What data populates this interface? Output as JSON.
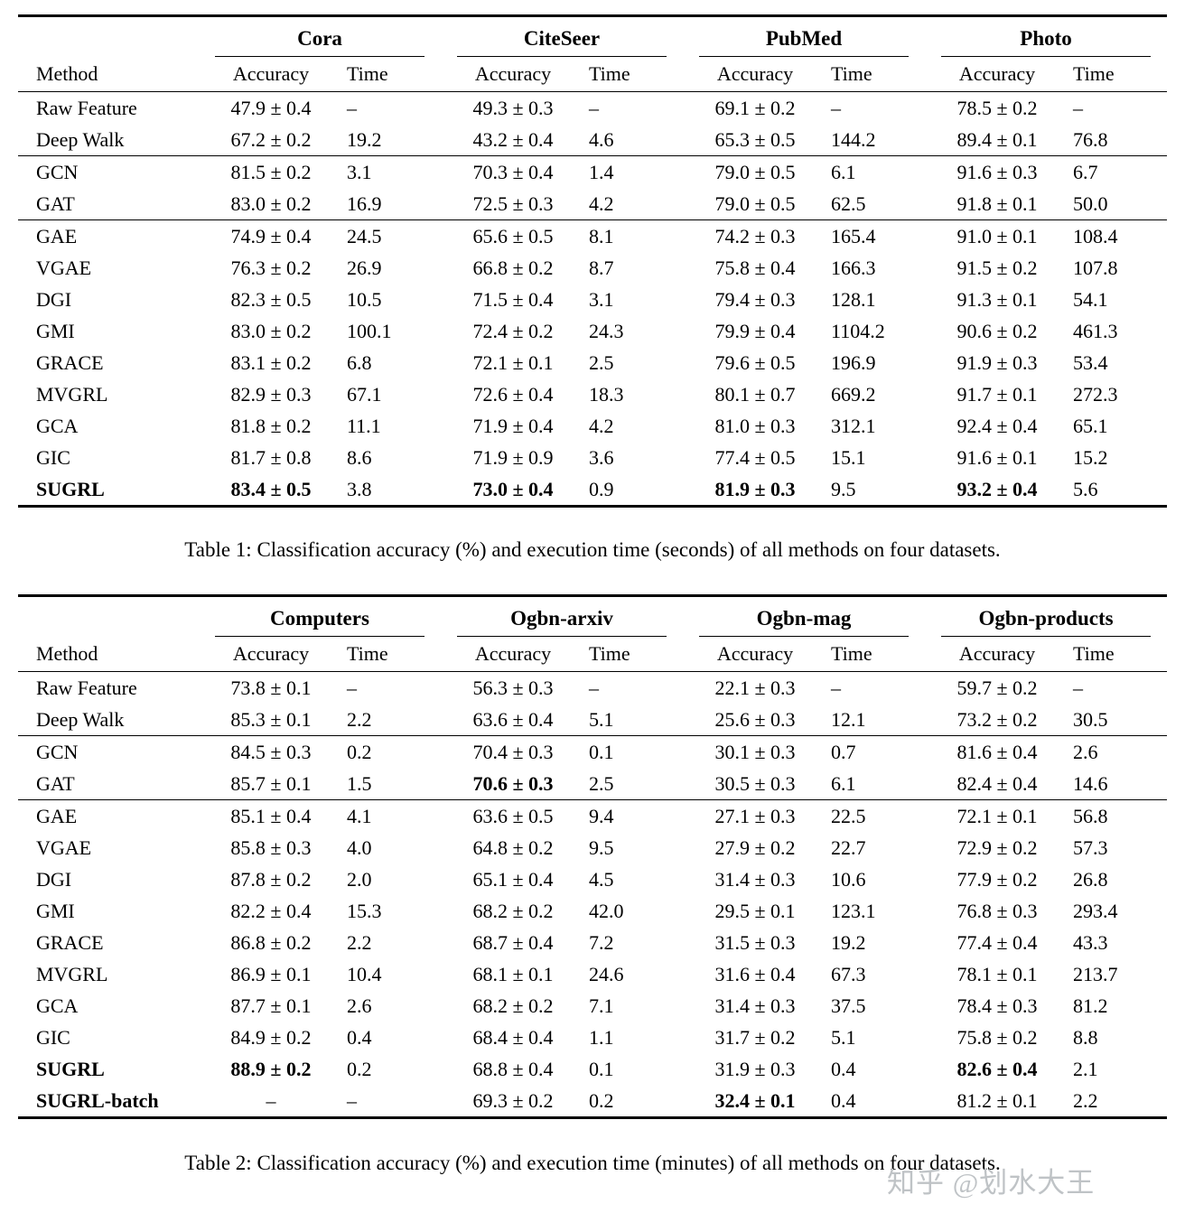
{
  "page": {
    "watermark": "知乎 @划水大王",
    "colors": {
      "background": "#ffffff",
      "text": "#000000",
      "watermark": "#bfc3c6"
    }
  },
  "tables": [
    {
      "id": "table1",
      "caption": "Table 1: Classification accuracy (%) and execution time (seconds) of all methods on four datasets.",
      "method_header": "Method",
      "sub_headers": [
        "Accuracy",
        "Time"
      ],
      "datasets": [
        "Cora",
        "CiteSeer",
        "PubMed",
        "Photo"
      ],
      "groups": [
        {
          "rows": [
            {
              "method": "Raw Feature",
              "method_bold": false,
              "bold_cols": [],
              "values": [
                "47.9 ± 0.4",
                "–",
                "49.3 ± 0.3",
                "–",
                "69.1 ± 0.2",
                "–",
                "78.5 ± 0.2",
                "–"
              ]
            },
            {
              "method": "Deep Walk",
              "method_bold": false,
              "bold_cols": [],
              "values": [
                "67.2 ± 0.2",
                "19.2",
                "43.2 ± 0.4",
                "4.6",
                "65.3 ± 0.5",
                "144.2",
                "89.4 ± 0.1",
                "76.8"
              ]
            }
          ]
        },
        {
          "rows": [
            {
              "method": "GCN",
              "method_bold": false,
              "bold_cols": [],
              "values": [
                "81.5 ± 0.2",
                "3.1",
                "70.3 ± 0.4",
                "1.4",
                "79.0 ± 0.5",
                "6.1",
                "91.6 ± 0.3",
                "6.7"
              ]
            },
            {
              "method": "GAT",
              "method_bold": false,
              "bold_cols": [],
              "values": [
                "83.0 ± 0.2",
                "16.9",
                "72.5 ± 0.3",
                "4.2",
                "79.0 ± 0.5",
                "62.5",
                "91.8 ± 0.1",
                "50.0"
              ]
            }
          ]
        },
        {
          "rows": [
            {
              "method": "GAE",
              "method_bold": false,
              "bold_cols": [],
              "values": [
                "74.9 ± 0.4",
                "24.5",
                "65.6 ± 0.5",
                "8.1",
                "74.2 ± 0.3",
                "165.4",
                "91.0 ± 0.1",
                "108.4"
              ]
            },
            {
              "method": "VGAE",
              "method_bold": false,
              "bold_cols": [],
              "values": [
                "76.3 ± 0.2",
                "26.9",
                "66.8 ± 0.2",
                "8.7",
                "75.8 ± 0.4",
                "166.3",
                "91.5 ± 0.2",
                "107.8"
              ]
            },
            {
              "method": "DGI",
              "method_bold": false,
              "bold_cols": [],
              "values": [
                "82.3 ± 0.5",
                "10.5",
                "71.5 ± 0.4",
                "3.1",
                "79.4 ± 0.3",
                "128.1",
                "91.3 ± 0.1",
                "54.1"
              ]
            },
            {
              "method": "GMI",
              "method_bold": false,
              "bold_cols": [],
              "values": [
                "83.0 ± 0.2",
                "100.1",
                "72.4 ± 0.2",
                "24.3",
                "79.9 ± 0.4",
                "1104.2",
                "90.6 ± 0.2",
                "461.3"
              ]
            },
            {
              "method": "GRACE",
              "method_bold": false,
              "bold_cols": [],
              "values": [
                "83.1 ± 0.2",
                "6.8",
                "72.1 ± 0.1",
                "2.5",
                "79.6 ± 0.5",
                "196.9",
                "91.9 ± 0.3",
                "53.4"
              ]
            },
            {
              "method": "MVGRL",
              "method_bold": false,
              "bold_cols": [],
              "values": [
                "82.9 ± 0.3",
                "67.1",
                "72.6 ± 0.4",
                "18.3",
                "80.1 ± 0.7",
                "669.2",
                "91.7 ± 0.1",
                "272.3"
              ]
            },
            {
              "method": "GCA",
              "method_bold": false,
              "bold_cols": [],
              "values": [
                "81.8 ± 0.2",
                "11.1",
                "71.9 ± 0.4",
                "4.2",
                "81.0 ± 0.3",
                "312.1",
                "92.4 ± 0.4",
                "65.1"
              ]
            },
            {
              "method": "GIC",
              "method_bold": false,
              "bold_cols": [],
              "values": [
                "81.7 ± 0.8",
                "8.6",
                "71.9 ± 0.9",
                "3.6",
                "77.4 ± 0.5",
                "15.1",
                "91.6 ± 0.1",
                "15.2"
              ]
            },
            {
              "method": "SUGRL",
              "method_bold": true,
              "bold_cols": [
                0,
                2,
                4,
                6
              ],
              "values": [
                "83.4 ± 0.5",
                "3.8",
                "73.0 ± 0.4",
                "0.9",
                "81.9 ± 0.3",
                "9.5",
                "93.2 ± 0.4",
                "5.6"
              ]
            }
          ]
        }
      ]
    },
    {
      "id": "table2",
      "caption": "Table 2: Classification accuracy (%) and execution time (minutes) of all methods on four datasets.",
      "method_header": "Method",
      "sub_headers": [
        "Accuracy",
        "Time"
      ],
      "datasets": [
        "Computers",
        "Ogbn-arxiv",
        "Ogbn-mag",
        "Ogbn-products"
      ],
      "groups": [
        {
          "rows": [
            {
              "method": "Raw Feature",
              "method_bold": false,
              "bold_cols": [],
              "values": [
                "73.8 ± 0.1",
                "–",
                "56.3 ± 0.3",
                "–",
                "22.1 ± 0.3",
                "–",
                "59.7 ± 0.2",
                "–"
              ]
            },
            {
              "method": "Deep Walk",
              "method_bold": false,
              "bold_cols": [],
              "values": [
                "85.3 ± 0.1",
                "2.2",
                "63.6 ± 0.4",
                "5.1",
                "25.6 ± 0.3",
                "12.1",
                "73.2 ± 0.2",
                "30.5"
              ]
            }
          ]
        },
        {
          "rows": [
            {
              "method": "GCN",
              "method_bold": false,
              "bold_cols": [],
              "values": [
                "84.5 ± 0.3",
                "0.2",
                "70.4 ± 0.3",
                "0.1",
                "30.1 ± 0.3",
                "0.7",
                "81.6 ± 0.4",
                "2.6"
              ]
            },
            {
              "method": "GAT",
              "method_bold": false,
              "bold_cols": [
                2
              ],
              "values": [
                "85.7 ± 0.1",
                "1.5",
                "70.6 ± 0.3",
                "2.5",
                "30.5 ± 0.3",
                "6.1",
                "82.4 ± 0.4",
                "14.6"
              ]
            }
          ]
        },
        {
          "rows": [
            {
              "method": "GAE",
              "method_bold": false,
              "bold_cols": [],
              "values": [
                "85.1 ± 0.4",
                "4.1",
                "63.6 ± 0.5",
                "9.4",
                "27.1 ± 0.3",
                "22.5",
                "72.1 ± 0.1",
                "56.8"
              ]
            },
            {
              "method": "VGAE",
              "method_bold": false,
              "bold_cols": [],
              "values": [
                "85.8 ± 0.3",
                "4.0",
                "64.8 ± 0.2",
                "9.5",
                "27.9 ± 0.2",
                "22.7",
                "72.9 ± 0.2",
                "57.3"
              ]
            },
            {
              "method": "DGI",
              "method_bold": false,
              "bold_cols": [],
              "values": [
                "87.8 ± 0.2",
                "2.0",
                "65.1 ± 0.4",
                "4.5",
                "31.4 ± 0.3",
                "10.6",
                "77.9 ± 0.2",
                "26.8"
              ]
            },
            {
              "method": "GMI",
              "method_bold": false,
              "bold_cols": [],
              "values": [
                "82.2 ± 0.4",
                "15.3",
                "68.2 ± 0.2",
                "42.0",
                "29.5 ± 0.1",
                "123.1",
                "76.8 ± 0.3",
                "293.4"
              ]
            },
            {
              "method": "GRACE",
              "method_bold": false,
              "bold_cols": [],
              "values": [
                "86.8 ± 0.2",
                "2.2",
                "68.7 ± 0.4",
                "7.2",
                "31.5 ± 0.3",
                "19.2",
                "77.4 ± 0.4",
                "43.3"
              ]
            },
            {
              "method": "MVGRL",
              "method_bold": false,
              "bold_cols": [],
              "values": [
                "86.9 ± 0.1",
                "10.4",
                "68.1 ± 0.1",
                "24.6",
                "31.6 ± 0.4",
                "67.3",
                "78.1 ± 0.1",
                "213.7"
              ]
            },
            {
              "method": "GCA",
              "method_bold": false,
              "bold_cols": [],
              "values": [
                "87.7 ± 0.1",
                "2.6",
                "68.2 ± 0.2",
                "7.1",
                "31.4 ± 0.3",
                "37.5",
                "78.4 ± 0.3",
                "81.2"
              ]
            },
            {
              "method": "GIC",
              "method_bold": false,
              "bold_cols": [],
              "values": [
                "84.9 ± 0.2",
                "0.4",
                "68.4 ± 0.4",
                "1.1",
                "31.7 ± 0.2",
                "5.1",
                "75.8 ± 0.2",
                "8.8"
              ]
            },
            {
              "method": "SUGRL",
              "method_bold": true,
              "bold_cols": [
                0,
                6
              ],
              "values": [
                "88.9 ± 0.2",
                "0.2",
                "68.8 ± 0.4",
                "0.1",
                "31.9 ± 0.3",
                "0.4",
                "82.6 ± 0.4",
                "2.1"
              ]
            },
            {
              "method": "SUGRL-batch",
              "method_bold": true,
              "bold_cols": [
                4
              ],
              "values": [
                "–",
                "–",
                "69.3 ± 0.2",
                "0.2",
                "32.4 ± 0.1",
                "0.4",
                "81.2 ± 0.1",
                "2.2"
              ]
            }
          ]
        }
      ]
    }
  ]
}
